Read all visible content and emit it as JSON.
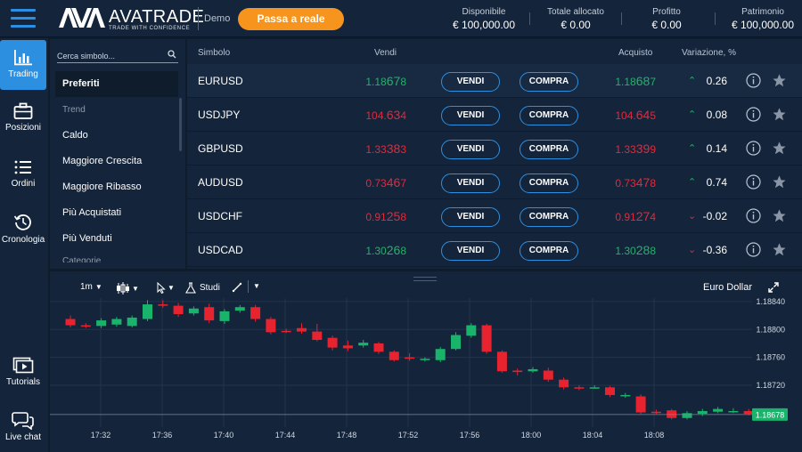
{
  "header": {
    "logo_main": "AVATRADE",
    "logo_sub": "TRADE WITH CONFIDENCE",
    "mode": "Demo",
    "cta_label": "Passa a reale",
    "stats": [
      {
        "label": "Disponibile",
        "value": "€ 100,000.00"
      },
      {
        "label": "Totale allocato",
        "value": "€ 0.00"
      },
      {
        "label": "Profitto",
        "value": "€ 0.00"
      },
      {
        "label": "Patrimonio",
        "value": "€ 100,000.00"
      }
    ]
  },
  "sidenav": {
    "items": [
      {
        "label": "Trading",
        "icon": "bar-chart-icon"
      },
      {
        "label": "Posizioni",
        "icon": "briefcase-icon"
      },
      {
        "label": "Ordini",
        "icon": "list-icon"
      },
      {
        "label": "Cronologia",
        "icon": "history-icon"
      },
      {
        "label": "Tutorials",
        "icon": "video-icon"
      },
      {
        "label": "Live chat",
        "icon": "chat-icon"
      }
    ]
  },
  "panel": {
    "search_placeholder": "Cerca simbolo...",
    "items": [
      "Preferiti",
      "Trend",
      "Caldo",
      "Maggiore Crescita",
      "Maggiore Ribasso",
      "Più Acquistati",
      "Più Venduti",
      "Categorie"
    ]
  },
  "table": {
    "headers": {
      "symbol": "Simbolo",
      "sell": "Vendi",
      "buy": "Acquisto",
      "change": "Variazione, %"
    },
    "sell_label": "VENDI",
    "buy_label": "COMPRA",
    "rows": [
      {
        "symbol": "EURUSD",
        "sell_pre": "1.18",
        "sell_big": "67",
        "sell_post": "8",
        "buy_pre": "1.18",
        "buy_big": "68",
        "buy_post": "7",
        "dir": "up",
        "change": "0.26"
      },
      {
        "symbol": "USDJPY",
        "sell_pre": "104.",
        "sell_big": "63",
        "sell_post": "4",
        "buy_pre": "104.",
        "buy_big": "64",
        "buy_post": "5",
        "dir": "down",
        "chgdir": "up",
        "change": "0.08"
      },
      {
        "symbol": "GBPUSD",
        "sell_pre": "1.33",
        "sell_big": "38",
        "sell_post": "3",
        "buy_pre": "1.33",
        "buy_big": "39",
        "buy_post": "9",
        "dir": "down",
        "chgdir": "up",
        "change": "0.14"
      },
      {
        "symbol": "AUDUSD",
        "sell_pre": "0.73",
        "sell_big": "46",
        "sell_post": "7",
        "buy_pre": "0.73",
        "buy_big": "47",
        "buy_post": "8",
        "dir": "down",
        "chgdir": "up",
        "change": "0.74"
      },
      {
        "symbol": "USDCHF",
        "sell_pre": "0.91",
        "sell_big": "25",
        "sell_post": "8",
        "buy_pre": "0.91",
        "buy_big": "27",
        "buy_post": "4",
        "dir": "down",
        "chgdir": "down",
        "change": "-0.02"
      },
      {
        "symbol": "USDCAD",
        "sell_pre": "1.30",
        "sell_big": "26",
        "sell_post": "8",
        "buy_pre": "1.30",
        "buy_big": "28",
        "buy_post": "8",
        "dir": "up",
        "chgdir": "down",
        "change": "-0.36"
      }
    ]
  },
  "chart": {
    "timeframe": "1m",
    "studies_label": "Studi",
    "instrument": "Euro Dollar",
    "last_price": "1.18678"
  },
  "chart_data": {
    "type": "candlestick",
    "x_ticks": [
      "17:32",
      "17:36",
      "17:40",
      "17:44",
      "17:48",
      "17:52",
      "17:56",
      "18:00",
      "18:04",
      "18:08"
    ],
    "y_ticks": [
      "1.18840",
      "1.18800",
      "1.18760",
      "1.18720"
    ],
    "ylim": [
      1.1866,
      1.18845
    ],
    "last": 1.18678,
    "candles": [
      [
        1.18815,
        1.18806,
        1.1882,
        1.18803
      ],
      [
        1.18806,
        1.18804,
        1.18809,
        1.18802
      ],
      [
        1.18805,
        1.18813,
        1.18816,
        1.18802
      ],
      [
        1.18807,
        1.18815,
        1.18818,
        1.18804
      ],
      [
        1.18805,
        1.18817,
        1.1882,
        1.18803
      ],
      [
        1.18815,
        1.18836,
        1.18842,
        1.18812
      ],
      [
        1.18836,
        1.18834,
        1.18842,
        1.18831
      ],
      [
        1.18834,
        1.18822,
        1.18838,
        1.18818
      ],
      [
        1.18823,
        1.1883,
        1.18833,
        1.1882
      ],
      [
        1.18832,
        1.18813,
        1.18837,
        1.18809
      ],
      [
        1.18812,
        1.18826,
        1.18829,
        1.18808
      ],
      [
        1.18827,
        1.18832,
        1.18835,
        1.18824
      ],
      [
        1.18832,
        1.18815,
        1.18835,
        1.18811
      ],
      [
        1.18815,
        1.18796,
        1.18818,
        1.18793
      ],
      [
        1.18798,
        1.18797,
        1.18801,
        1.18795
      ],
      [
        1.18802,
        1.18797,
        1.18809,
        1.18794
      ],
      [
        1.18797,
        1.18785,
        1.18808,
        1.18783
      ],
      [
        1.18788,
        1.18774,
        1.18791,
        1.1877
      ],
      [
        1.18777,
        1.18773,
        1.18784,
        1.18769
      ],
      [
        1.18777,
        1.18781,
        1.18785,
        1.18774
      ],
      [
        1.1878,
        1.18768,
        1.18782,
        1.18765
      ],
      [
        1.18768,
        1.18756,
        1.1877,
        1.18754
      ],
      [
        1.1876,
        1.18758,
        1.18766,
        1.18755
      ],
      [
        1.18756,
        1.18758,
        1.1876,
        1.18754
      ],
      [
        1.18756,
        1.18772,
        1.18775,
        1.18753
      ],
      [
        1.18772,
        1.18792,
        1.18796,
        1.1877
      ],
      [
        1.18791,
        1.18806,
        1.18809,
        1.18788
      ],
      [
        1.18806,
        1.18768,
        1.18808,
        1.18765
      ],
      [
        1.18768,
        1.1874,
        1.1877,
        1.18738
      ],
      [
        1.18741,
        1.18739,
        1.18744,
        1.18734
      ],
      [
        1.1874,
        1.18743,
        1.18746,
        1.18738
      ],
      [
        1.18741,
        1.18728,
        1.18745,
        1.18725
      ],
      [
        1.18728,
        1.18717,
        1.18731,
        1.18714
      ],
      [
        1.18717,
        1.18716,
        1.1872,
        1.18713
      ],
      [
        1.18717,
        1.18717,
        1.1872,
        1.18715
      ],
      [
        1.18717,
        1.18706,
        1.18719,
        1.18703
      ],
      [
        1.18706,
        1.18706,
        1.18709,
        1.18702
      ],
      [
        1.18704,
        1.18681,
        1.18707,
        1.18679
      ],
      [
        1.18682,
        1.18681,
        1.18685,
        1.18679
      ],
      [
        1.18684,
        1.18673,
        1.18686,
        1.18671
      ],
      [
        1.18673,
        1.1868,
        1.18683,
        1.18671
      ],
      [
        1.18679,
        1.18683,
        1.18686,
        1.18676
      ],
      [
        1.18682,
        1.18686,
        1.18689,
        1.1868
      ],
      [
        1.18683,
        1.18683,
        1.18687,
        1.1868
      ],
      [
        1.18683,
        1.18679,
        1.18686,
        1.18677
      ]
    ]
  }
}
